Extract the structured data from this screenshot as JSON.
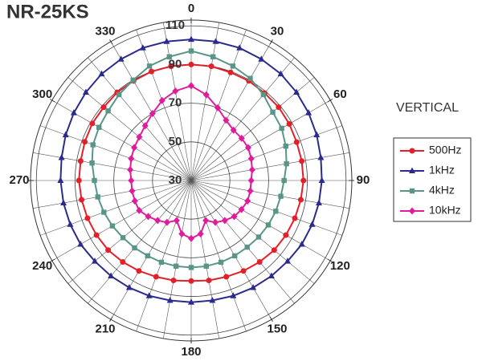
{
  "chart_data": {
    "type": "polar",
    "title": "NR-25KS",
    "annotation": "VERTICAL",
    "theta": [
      0,
      10,
      20,
      30,
      40,
      50,
      60,
      70,
      80,
      90,
      100,
      110,
      120,
      130,
      140,
      150,
      160,
      170,
      180,
      190,
      200,
      210,
      220,
      230,
      240,
      250,
      260,
      270,
      280,
      290,
      300,
      310,
      320,
      330,
      340,
      350
    ],
    "thetaticks": [
      0,
      30,
      60,
      90,
      120,
      150,
      180,
      210,
      240,
      270,
      300,
      330
    ],
    "rlim": [
      30,
      113
    ],
    "rticks": [
      30,
      50,
      70,
      90,
      110
    ],
    "series": [
      {
        "name": "500Hz",
        "color": "#e3202a",
        "marker": "circle",
        "values": [
          90,
          90,
          89.5,
          89.5,
          89,
          89,
          88.5,
          88,
          88,
          88,
          87.5,
          87,
          86.5,
          86,
          85,
          84,
          83,
          82.5,
          82,
          82.5,
          83,
          84,
          85,
          86,
          86.5,
          87,
          87.5,
          88,
          88,
          88.5,
          89,
          89,
          89.5,
          89.5,
          90,
          90
        ]
      },
      {
        "name": "1kHz",
        "color": "#2b2b8c",
        "marker": "triangle",
        "values": [
          103,
          103,
          103,
          102.5,
          102,
          101,
          100,
          99,
          98,
          97.5,
          97,
          96.5,
          96,
          95,
          94.5,
          94,
          93.5,
          93,
          93,
          93,
          93.5,
          94,
          94.5,
          95,
          96,
          96.5,
          97,
          97.5,
          98,
          99,
          100,
          101,
          102,
          102.5,
          103,
          103
        ]
      },
      {
        "name": "4kHz",
        "color": "#5a9688",
        "marker": "square",
        "values": [
          97,
          95,
          93,
          91,
          88,
          85,
          84,
          82,
          80,
          78,
          77,
          76.5,
          76,
          75.5,
          75,
          75,
          75,
          75,
          75,
          75,
          75,
          75,
          75.5,
          76,
          77,
          78,
          79,
          80,
          82,
          84,
          85,
          86,
          88,
          90,
          93,
          95
        ]
      },
      {
        "name": "10kHz",
        "color": "#e01c9c",
        "marker": "diamond",
        "values": [
          79,
          75,
          70,
          66,
          64,
          64,
          64,
          63,
          62,
          61,
          61,
          61,
          60,
          59,
          57,
          55,
          52,
          58,
          60,
          58,
          52,
          55,
          57,
          59,
          61,
          61,
          61,
          61,
          62,
          63,
          64,
          65,
          67,
          70,
          74,
          77
        ]
      }
    ]
  }
}
